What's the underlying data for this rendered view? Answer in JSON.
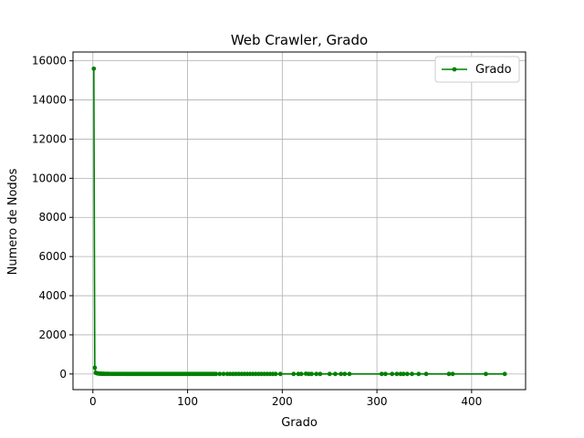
{
  "chart_data": {
    "type": "line",
    "title": "Web Crawler, Grado",
    "xlabel": "Grado",
    "ylabel": "Numero de Nodos",
    "xlim": [
      -21,
      457
    ],
    "ylim": [
      -800,
      16450
    ],
    "xticks": [
      0,
      100,
      200,
      300,
      400
    ],
    "yticks": [
      0,
      2000,
      4000,
      6000,
      8000,
      10000,
      12000,
      14000,
      16000
    ],
    "grid": true,
    "legend": "top-right",
    "series": [
      {
        "name": "Grado",
        "color": "#008000",
        "x": [
          1,
          2,
          3,
          4,
          5,
          6,
          7,
          8,
          9,
          10,
          11,
          12,
          14,
          16,
          18,
          20,
          22,
          24,
          26,
          28,
          30,
          32,
          34,
          36,
          38,
          40,
          42,
          44,
          46,
          48,
          50,
          52,
          54,
          56,
          58,
          60,
          62,
          64,
          66,
          68,
          70,
          72,
          74,
          76,
          78,
          80,
          82,
          84,
          86,
          88,
          90,
          92,
          94,
          96,
          98,
          100,
          102,
          104,
          106,
          108,
          110,
          112,
          114,
          116,
          118,
          120,
          122,
          124,
          126,
          128,
          130,
          134,
          138,
          142,
          145,
          148,
          151,
          154,
          157,
          160,
          163,
          166,
          169,
          172,
          175,
          178,
          181,
          184,
          187,
          190,
          193,
          198,
          212,
          217,
          220,
          225,
          228,
          231,
          236,
          240,
          250,
          256,
          262,
          266,
          271,
          305,
          309,
          316,
          321,
          325,
          328,
          332,
          337,
          344,
          352,
          376,
          380,
          415,
          435
        ],
        "y": [
          15600,
          320,
          60,
          40,
          30,
          20,
          20,
          15,
          12,
          10,
          10,
          8,
          6,
          6,
          5,
          5,
          4,
          4,
          3,
          3,
          3,
          3,
          3,
          2,
          2,
          2,
          2,
          2,
          2,
          2,
          2,
          2,
          1,
          1,
          1,
          1,
          1,
          1,
          1,
          1,
          1,
          1,
          1,
          1,
          1,
          1,
          1,
          1,
          1,
          1,
          1,
          1,
          1,
          1,
          1,
          1,
          1,
          1,
          1,
          1,
          1,
          1,
          1,
          1,
          1,
          1,
          1,
          1,
          1,
          1,
          1,
          1,
          1,
          1,
          1,
          1,
          1,
          1,
          1,
          1,
          1,
          1,
          1,
          1,
          1,
          1,
          1,
          1,
          1,
          1,
          1,
          1,
          1,
          1,
          1,
          15,
          1,
          1,
          1,
          1,
          1,
          1,
          1,
          1,
          1,
          1,
          1,
          1,
          1,
          1,
          1,
          1,
          1,
          1,
          1,
          1,
          1,
          1,
          1
        ]
      }
    ]
  }
}
